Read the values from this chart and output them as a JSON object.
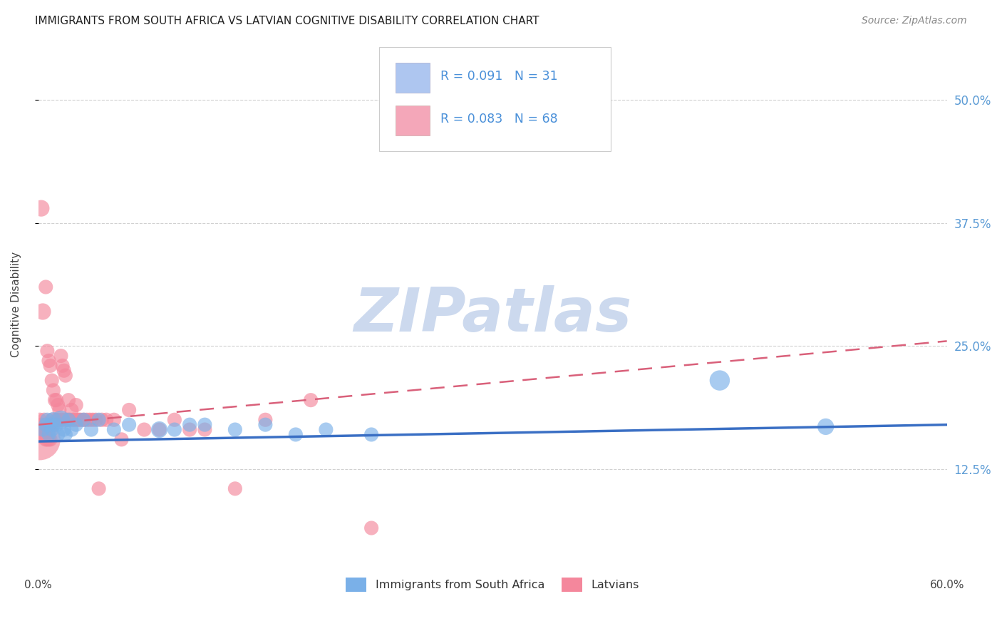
{
  "title": "IMMIGRANTS FROM SOUTH AFRICA VS LATVIAN COGNITIVE DISABILITY CORRELATION CHART",
  "source": "Source: ZipAtlas.com",
  "ylabel": "Cognitive Disability",
  "ytick_labels": [
    "12.5%",
    "25.0%",
    "37.5%",
    "50.0%"
  ],
  "ytick_values": [
    0.125,
    0.25,
    0.375,
    0.5
  ],
  "xlim": [
    0.0,
    0.6
  ],
  "ylim": [
    0.02,
    0.565
  ],
  "legend1_label": "R = 0.091   N = 31",
  "legend2_label": "R = 0.083   N = 68",
  "legend_color1": "#aec6f0",
  "legend_color2": "#f4a7b9",
  "scatter_color_blue": "#7ab0e8",
  "scatter_color_pink": "#f4879c",
  "trendline_color_blue": "#3a6fc4",
  "trendline_color_pink": "#d9607a",
  "trendline_pink_dashed": true,
  "watermark_text": "ZIPatlas",
  "watermark_color": "#ccd9ee",
  "background_color": "#ffffff",
  "legend_box_text_color": "#4a90d9",
  "blue_line_x0": 0.0,
  "blue_line_y0": 0.153,
  "blue_line_x1": 0.6,
  "blue_line_y1": 0.17,
  "pink_line_x0": 0.0,
  "pink_line_y0": 0.17,
  "pink_line_x1": 0.6,
  "pink_line_y1": 0.255,
  "blue_scatter_x": [
    0.003,
    0.005,
    0.006,
    0.007,
    0.008,
    0.009,
    0.01,
    0.012,
    0.013,
    0.015,
    0.017,
    0.018,
    0.02,
    0.022,
    0.025,
    0.03,
    0.035,
    0.04,
    0.05,
    0.06,
    0.08,
    0.09,
    0.1,
    0.11,
    0.13,
    0.15,
    0.17,
    0.19,
    0.22,
    0.45,
    0.52
  ],
  "blue_scatter_y": [
    0.165,
    0.17,
    0.175,
    0.16,
    0.17,
    0.165,
    0.175,
    0.17,
    0.16,
    0.175,
    0.165,
    0.16,
    0.175,
    0.165,
    0.17,
    0.175,
    0.165,
    0.175,
    0.165,
    0.17,
    0.165,
    0.165,
    0.17,
    0.17,
    0.165,
    0.17,
    0.16,
    0.165,
    0.16,
    0.215,
    0.168
  ],
  "blue_scatter_s": [
    30,
    30,
    30,
    30,
    30,
    30,
    35,
    30,
    30,
    50,
    30,
    30,
    30,
    30,
    30,
    30,
    30,
    30,
    30,
    30,
    40,
    30,
    30,
    30,
    30,
    30,
    30,
    30,
    30,
    60,
    40
  ],
  "pink_scatter_x": [
    0.001,
    0.002,
    0.002,
    0.003,
    0.004,
    0.005,
    0.005,
    0.006,
    0.006,
    0.007,
    0.007,
    0.008,
    0.008,
    0.009,
    0.009,
    0.01,
    0.01,
    0.011,
    0.012,
    0.012,
    0.013,
    0.013,
    0.014,
    0.015,
    0.015,
    0.016,
    0.016,
    0.017,
    0.018,
    0.018,
    0.019,
    0.02,
    0.021,
    0.022,
    0.023,
    0.024,
    0.025,
    0.026,
    0.027,
    0.028,
    0.03,
    0.032,
    0.034,
    0.036,
    0.038,
    0.04,
    0.042,
    0.045,
    0.05,
    0.055,
    0.06,
    0.07,
    0.08,
    0.09,
    0.1,
    0.11,
    0.13,
    0.15,
    0.18,
    0.22,
    0.001,
    0.002,
    0.003,
    0.004,
    0.005,
    0.006,
    0.007,
    0.008
  ],
  "pink_scatter_y": [
    0.175,
    0.39,
    0.17,
    0.285,
    0.175,
    0.31,
    0.165,
    0.245,
    0.17,
    0.235,
    0.165,
    0.23,
    0.17,
    0.215,
    0.175,
    0.205,
    0.17,
    0.195,
    0.195,
    0.175,
    0.19,
    0.175,
    0.185,
    0.24,
    0.175,
    0.23,
    0.175,
    0.225,
    0.22,
    0.175,
    0.175,
    0.195,
    0.175,
    0.185,
    0.175,
    0.175,
    0.19,
    0.175,
    0.175,
    0.175,
    0.175,
    0.175,
    0.175,
    0.175,
    0.175,
    0.105,
    0.175,
    0.175,
    0.175,
    0.155,
    0.185,
    0.165,
    0.165,
    0.175,
    0.165,
    0.165,
    0.105,
    0.175,
    0.195,
    0.065,
    0.155,
    0.16,
    0.165,
    0.16,
    0.155,
    0.155,
    0.155,
    0.155
  ],
  "pink_scatter_s": [
    30,
    40,
    30,
    40,
    30,
    30,
    30,
    30,
    30,
    30,
    30,
    30,
    30,
    30,
    30,
    30,
    30,
    30,
    30,
    30,
    30,
    30,
    30,
    30,
    30,
    30,
    30,
    30,
    30,
    30,
    30,
    30,
    30,
    30,
    30,
    30,
    30,
    30,
    30,
    30,
    30,
    30,
    30,
    30,
    30,
    30,
    30,
    30,
    30,
    30,
    30,
    30,
    30,
    30,
    30,
    30,
    30,
    30,
    30,
    30,
    250,
    50,
    30,
    30,
    30,
    30,
    30,
    30
  ]
}
